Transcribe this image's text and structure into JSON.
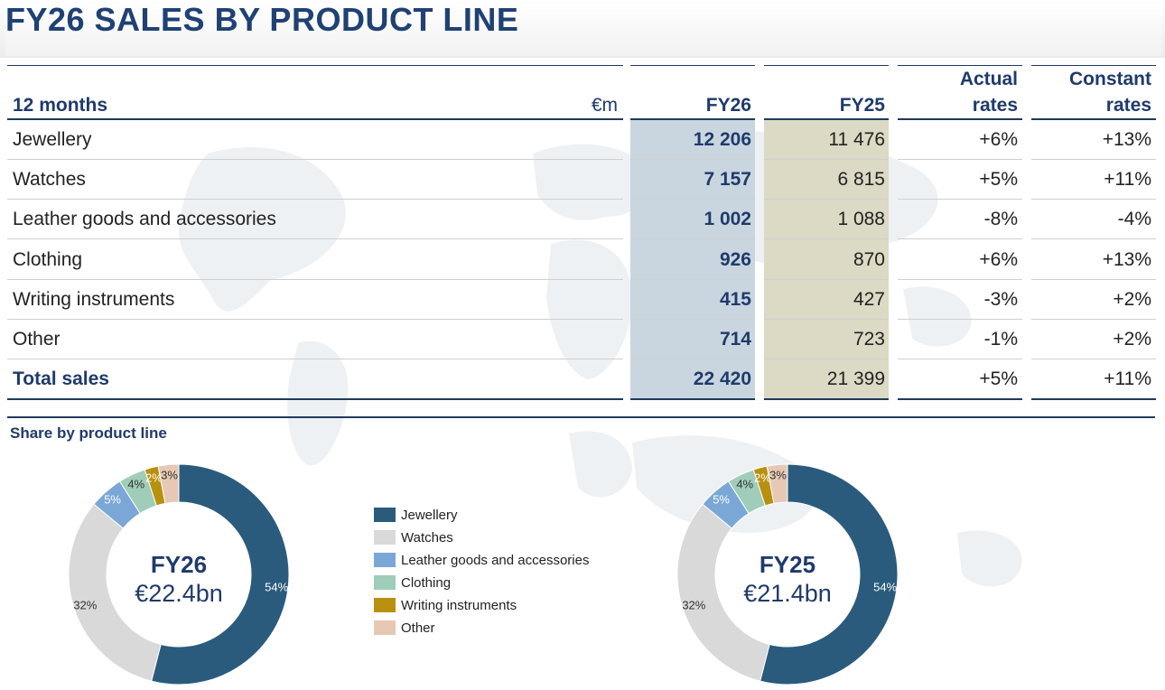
{
  "title": "FY26 SALES BY PRODUCT LINE",
  "table": {
    "header": {
      "period": "12 months",
      "unit": "€m",
      "fy26": "FY26",
      "fy25": "FY25",
      "actual_1": "Actual",
      "actual_2": "rates",
      "constant_1": "Constant",
      "constant_2": "rates"
    },
    "rows": [
      {
        "label": "Jewellery",
        "fy26": "12 206",
        "fy25": "11 476",
        "actual": "+6%",
        "constant": "+13%"
      },
      {
        "label": "Watches",
        "fy26": "7 157",
        "fy25": "6 815",
        "actual": "+5%",
        "constant": "+11%"
      },
      {
        "label": "Leather goods and accessories",
        "fy26": "1 002",
        "fy25": "1 088",
        "actual": "-8%",
        "constant": "-4%"
      },
      {
        "label": "Clothing",
        "fy26": "926",
        "fy25": "870",
        "actual": "+6%",
        "constant": "+13%"
      },
      {
        "label": "Writing instruments",
        "fy26": "415",
        "fy25": "427",
        "actual": "-3%",
        "constant": "+2%"
      },
      {
        "label": "Other",
        "fy26": "714",
        "fy25": "723",
        "actual": "-1%",
        "constant": "+2%"
      }
    ],
    "total": {
      "label": "Total sales",
      "fy26": "22 420",
      "fy25": "21 399",
      "actual": "+5%",
      "constant": "+11%"
    },
    "colors": {
      "fy26_shade": "#c9d6e0",
      "fy25_shade": "#dcd9c4",
      "header_text": "#1f3a6b",
      "rule": "#1f3a5c"
    }
  },
  "share_section": {
    "title": "Share by product line"
  },
  "chart_data": [
    {
      "type": "pie",
      "style": "donut",
      "center_title": "FY26",
      "center_value": "€22.4bn",
      "categories": [
        "Jewellery",
        "Watches",
        "Leather goods and accessories",
        "Clothing",
        "Writing instruments",
        "Other"
      ],
      "values": [
        54,
        32,
        5,
        4,
        2,
        3
      ],
      "labels": [
        "54%",
        "32%",
        "5%",
        "4%",
        "2%",
        "3%"
      ],
      "colors": [
        "#2a5b7d",
        "#d9d9d9",
        "#7ba7d6",
        "#9fcdb9",
        "#b8900f",
        "#e6c8b4"
      ]
    },
    {
      "type": "pie",
      "style": "donut",
      "center_title": "FY25",
      "center_value": "€21.4bn",
      "categories": [
        "Jewellery",
        "Watches",
        "Leather goods and accessories",
        "Clothing",
        "Writing instruments",
        "Other"
      ],
      "values": [
        54,
        32,
        5,
        4,
        2,
        3
      ],
      "labels": [
        "54%",
        "32%",
        "5%",
        "4%",
        "2%",
        "3%"
      ],
      "colors": [
        "#2a5b7d",
        "#d9d9d9",
        "#7ba7d6",
        "#9fcdb9",
        "#b8900f",
        "#e6c8b4"
      ]
    }
  ],
  "legend": [
    {
      "label": "Jewellery",
      "color": "#2a5b7d"
    },
    {
      "label": "Watches",
      "color": "#d9d9d9"
    },
    {
      "label": "Leather goods and accessories",
      "color": "#7ba7d6"
    },
    {
      "label": "Clothing",
      "color": "#9fcdb9"
    },
    {
      "label": "Writing instruments",
      "color": "#b8900f"
    },
    {
      "label": "Other",
      "color": "#e6c8b4"
    }
  ]
}
